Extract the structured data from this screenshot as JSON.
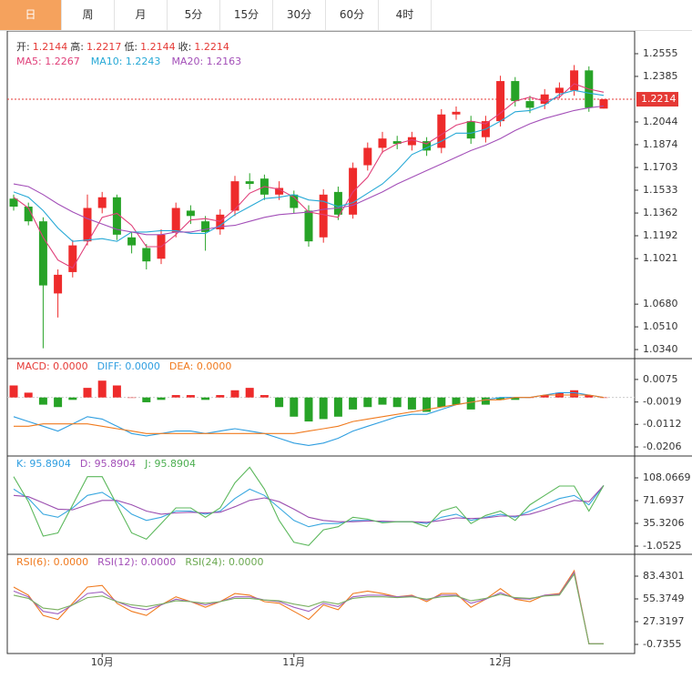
{
  "tabs": [
    "日",
    "周",
    "月",
    "5分",
    "15分",
    "30分",
    "60分",
    "4时"
  ],
  "active_tab": 0,
  "chart_data": [
    {
      "type": "candlestick",
      "info": [
        {
          "text": "开:",
          "color": "#333333"
        },
        {
          "text": "1.2144",
          "color": "#e53935"
        },
        {
          "text": "高:",
          "color": "#333333"
        },
        {
          "text": "1.2217",
          "color": "#e53935"
        },
        {
          "text": "低:",
          "color": "#333333"
        },
        {
          "text": "1.2144",
          "color": "#e53935"
        },
        {
          "text": "收:",
          "color": "#333333"
        },
        {
          "text": "1.2214",
          "color": "#e53935"
        }
      ],
      "legend": [
        {
          "text": "MA5: 1.2267",
          "color": "#e0407a"
        },
        {
          "text": "MA10: 1.2243",
          "color": "#27a9d6"
        },
        {
          "text": "MA20: 1.2163",
          "color": "#a34fb8"
        }
      ],
      "categories": [
        null,
        null,
        null,
        null,
        null,
        null,
        "10月",
        null,
        null,
        null,
        null,
        null,
        null,
        null,
        null,
        null,
        null,
        null,
        null,
        "11月",
        null,
        null,
        null,
        null,
        null,
        null,
        null,
        null,
        null,
        null,
        null,
        null,
        null,
        "12月",
        null,
        null,
        null,
        null,
        null,
        null,
        null
      ],
      "up_color": "#ee2b2b",
      "down_color": "#27a327",
      "ohlc": [
        [
          1.147,
          1.15,
          1.138,
          1.141
        ],
        [
          1.141,
          1.144,
          1.127,
          1.13
        ],
        [
          1.13,
          1.133,
          1.035,
          1.082
        ],
        [
          1.076,
          1.094,
          1.058,
          1.09
        ],
        [
          1.092,
          1.116,
          1.088,
          1.112
        ],
        [
          1.115,
          1.15,
          1.112,
          1.14
        ],
        [
          1.14,
          1.152,
          1.136,
          1.148
        ],
        [
          1.148,
          1.15,
          1.116,
          1.12
        ],
        [
          1.118,
          1.122,
          1.106,
          1.112
        ],
        [
          1.11,
          1.113,
          1.094,
          1.1
        ],
        [
          1.102,
          1.124,
          1.098,
          1.12
        ],
        [
          1.122,
          1.144,
          1.118,
          1.14
        ],
        [
          1.138,
          1.142,
          1.128,
          1.134
        ],
        [
          1.13,
          1.134,
          1.108,
          1.122
        ],
        [
          1.124,
          1.139,
          1.12,
          1.135
        ],
        [
          1.138,
          1.164,
          1.134,
          1.16
        ],
        [
          1.16,
          1.166,
          1.154,
          1.158
        ],
        [
          1.162,
          1.165,
          1.146,
          1.15
        ],
        [
          1.15,
          1.16,
          1.146,
          1.155
        ],
        [
          1.15,
          1.153,
          1.136,
          1.14
        ],
        [
          1.138,
          1.142,
          1.111,
          1.115
        ],
        [
          1.118,
          1.154,
          1.114,
          1.15
        ],
        [
          1.152,
          1.156,
          1.131,
          1.135
        ],
        [
          1.135,
          1.174,
          1.132,
          1.17
        ],
        [
          1.172,
          1.189,
          1.168,
          1.185
        ],
        [
          1.185,
          1.197,
          1.181,
          1.192
        ],
        [
          1.19,
          1.194,
          1.184,
          1.188
        ],
        [
          1.187,
          1.197,
          1.183,
          1.193
        ],
        [
          1.19,
          1.193,
          1.179,
          1.183
        ],
        [
          1.185,
          1.214,
          1.181,
          1.21
        ],
        [
          1.21,
          1.216,
          1.206,
          1.212
        ],
        [
          1.205,
          1.209,
          1.188,
          1.192
        ],
        [
          1.193,
          1.209,
          1.189,
          1.205
        ],
        [
          1.205,
          1.239,
          1.201,
          1.235
        ],
        [
          1.235,
          1.238,
          1.216,
          1.22
        ],
        [
          1.22,
          1.224,
          1.211,
          1.215
        ],
        [
          1.218,
          1.229,
          1.214,
          1.225
        ],
        [
          1.226,
          1.234,
          1.222,
          1.23
        ],
        [
          1.228,
          1.247,
          1.224,
          1.243
        ],
        [
          1.243,
          1.246,
          1.212,
          1.215
        ],
        [
          1.2144,
          1.2217,
          1.2144,
          1.2214
        ]
      ],
      "series": [
        {
          "color": "#e0407a",
          "values": [
            1.148,
            1.14,
            1.118,
            1.101,
            1.095,
            1.114,
            1.133,
            1.136,
            1.127,
            1.111,
            1.111,
            1.12,
            1.131,
            1.132,
            1.13,
            1.139,
            1.151,
            1.156,
            1.154,
            1.148,
            1.137,
            1.135,
            1.133,
            1.152,
            1.163,
            1.182,
            1.188,
            1.191,
            1.188,
            1.195,
            1.202,
            1.205,
            1.203,
            1.211,
            1.22,
            1.223,
            1.22,
            1.223,
            1.233,
            1.229,
            1.2267
          ]
        },
        {
          "color": "#27a9d6",
          "values": [
            1.152,
            1.148,
            1.138,
            1.125,
            1.115,
            1.116,
            1.117,
            1.115,
            1.122,
            1.122,
            1.123,
            1.123,
            1.121,
            1.121,
            1.127,
            1.135,
            1.141,
            1.147,
            1.148,
            1.15,
            1.146,
            1.145,
            1.141,
            1.144,
            1.151,
            1.158,
            1.168,
            1.18,
            1.185,
            1.19,
            1.196,
            1.196,
            1.199,
            1.205,
            1.212,
            1.213,
            1.217,
            1.225,
            1.228,
            1.226,
            1.2243
          ]
        },
        {
          "color": "#a34fb8",
          "values": [
            1.158,
            1.156,
            1.15,
            1.143,
            1.137,
            1.132,
            1.128,
            1.124,
            1.122,
            1.12,
            1.12,
            1.122,
            1.122,
            1.124,
            1.126,
            1.127,
            1.13,
            1.133,
            1.135,
            1.136,
            1.137,
            1.139,
            1.14,
            1.142,
            1.147,
            1.152,
            1.158,
            1.163,
            1.168,
            1.173,
            1.178,
            1.183,
            1.187,
            1.192,
            1.198,
            1.203,
            1.207,
            1.21,
            1.213,
            1.215,
            1.2163
          ]
        }
      ],
      "last_price": 1.2214,
      "last_price_color": "#e53935",
      "ylim": [
        1.0279,
        1.2698
      ],
      "yticks": [
        1.2555,
        1.2385,
        1.2044,
        1.1874,
        1.1703,
        1.1533,
        1.1362,
        1.1192,
        1.1021,
        {
          "value": 1.068,
          "label": "1.0680"
        },
        {
          "value": 1.051,
          "label": "1.0510"
        },
        {
          "value": 1.034,
          "label": "1.0340"
        }
      ]
    },
    {
      "type": "macd",
      "legend": [
        {
          "text": "MACD: 0.0000",
          "color": "#e53935"
        },
        {
          "text": "DIFF: 0.0000",
          "color": "#2f9ee0"
        },
        {
          "text": "DEA: 0.0000",
          "color": "#f07a1e"
        }
      ],
      "up_color": "#ee2b2b",
      "down_color": "#27a327",
      "histogram": [
        0.005,
        0.002,
        -0.003,
        -0.004,
        -0.001,
        0.004,
        0.007,
        0.005,
        0.0,
        -0.002,
        -0.001,
        0.001,
        0.001,
        -0.001,
        0.001,
        0.003,
        0.004,
        0.001,
        -0.004,
        -0.008,
        -0.01,
        -0.009,
        -0.008,
        -0.005,
        -0.004,
        -0.003,
        -0.004,
        -0.005,
        -0.006,
        -0.004,
        -0.003,
        -0.005,
        -0.003,
        -0.001,
        -0.001,
        0.0,
        0.001,
        0.002,
        0.003,
        0.001,
        0.0
      ],
      "series": [
        {
          "color": "#2f9ee0",
          "values": [
            -0.008,
            -0.01,
            -0.012,
            -0.014,
            -0.011,
            -0.008,
            -0.009,
            -0.012,
            -0.015,
            -0.016,
            -0.015,
            -0.014,
            -0.014,
            -0.015,
            -0.014,
            -0.013,
            -0.014,
            -0.015,
            -0.017,
            -0.019,
            -0.02,
            -0.019,
            -0.017,
            -0.014,
            -0.012,
            -0.01,
            -0.008,
            -0.007,
            -0.007,
            -0.005,
            -0.003,
            -0.002,
            -0.001,
            0.0,
            0.0,
            0.0,
            0.001,
            0.002,
            0.002,
            0.001,
            0.0
          ]
        },
        {
          "color": "#f07a1e",
          "values": [
            -0.012,
            -0.012,
            -0.011,
            -0.011,
            -0.011,
            -0.011,
            -0.012,
            -0.013,
            -0.014,
            -0.015,
            -0.015,
            -0.015,
            -0.015,
            -0.015,
            -0.015,
            -0.015,
            -0.015,
            -0.015,
            -0.015,
            -0.015,
            -0.014,
            -0.013,
            -0.012,
            -0.01,
            -0.009,
            -0.008,
            -0.007,
            -0.006,
            -0.005,
            -0.004,
            -0.003,
            -0.002,
            -0.001,
            -0.001,
            0.0,
            0.0,
            0.001,
            0.001,
            0.001,
            0.001,
            0.0
          ]
        }
      ],
      "ylim": [
        -0.024,
        0.0158
      ],
      "yticks": [
        0.0075,
        -0.0019,
        -0.0112,
        -0.0206
      ]
    },
    {
      "type": "line",
      "legend": [
        {
          "text": "K: 95.8904",
          "color": "#2f9ee0"
        },
        {
          "text": "D: 95.8904",
          "color": "#a34fb8"
        },
        {
          "text": "J: 95.8904",
          "color": "#4caf50"
        }
      ],
      "series": [
        {
          "color": "#3aa8e0",
          "values": [
            90,
            75,
            50,
            45,
            60,
            80,
            85,
            70,
            50,
            40,
            45,
            55,
            55,
            50,
            55,
            75,
            90,
            80,
            60,
            40,
            30,
            35,
            35,
            40,
            40,
            38,
            38,
            38,
            35,
            45,
            50,
            40,
            45,
            50,
            45,
            55,
            65,
            75,
            80,
            65,
            95.8904
          ]
        },
        {
          "color": "#9b4fb0",
          "values": [
            80,
            78,
            68,
            58,
            57,
            65,
            72,
            72,
            65,
            55,
            50,
            52,
            53,
            52,
            53,
            62,
            72,
            76,
            70,
            58,
            45,
            40,
            38,
            38,
            39,
            39,
            38,
            38,
            37,
            40,
            44,
            43,
            44,
            47,
            47,
            50,
            57,
            65,
            72,
            70,
            95.8904
          ]
        },
        {
          "color": "#5cb85c",
          "values": [
            110,
            70,
            15,
            20,
            65,
            110,
            110,
            65,
            20,
            10,
            35,
            60,
            60,
            45,
            60,
            100,
            125,
            90,
            40,
            5,
            0,
            25,
            30,
            45,
            42,
            36,
            38,
            38,
            30,
            55,
            62,
            35,
            48,
            55,
            40,
            65,
            80,
            95,
            95,
            55,
            95.8904
          ]
        }
      ],
      "ylim": [
        -12.69,
        141.53
      ],
      "yticks": [
        108.0669,
        71.6937,
        35.3206,
        -1.0525
      ]
    },
    {
      "type": "line",
      "legend": [
        {
          "text": "RSI(6): 0.0000",
          "color": "#f07a1e"
        },
        {
          "text": "RSI(12): 0.0000",
          "color": "#a34fb8"
        },
        {
          "text": "RSI(24): 0.0000",
          "color": "#6aa84f"
        }
      ],
      "series": [
        {
          "color": "#f07a1e",
          "values": [
            70,
            60,
            35,
            30,
            50,
            70,
            72,
            50,
            40,
            35,
            48,
            58,
            52,
            45,
            52,
            62,
            60,
            52,
            50,
            40,
            30,
            48,
            42,
            62,
            65,
            62,
            58,
            60,
            52,
            62,
            62,
            45,
            55,
            68,
            55,
            52,
            60,
            62,
            90,
            0,
            0
          ]
        },
        {
          "color": "#a060c0",
          "values": [
            65,
            58,
            40,
            37,
            48,
            62,
            64,
            52,
            45,
            42,
            48,
            55,
            52,
            48,
            52,
            58,
            58,
            54,
            52,
            45,
            40,
            50,
            46,
            58,
            60,
            60,
            58,
            59,
            54,
            60,
            60,
            50,
            55,
            63,
            56,
            55,
            60,
            61,
            88,
            0,
            0
          ]
        },
        {
          "color": "#7ab060",
          "values": [
            60,
            56,
            44,
            42,
            48,
            57,
            59,
            52,
            48,
            46,
            49,
            53,
            52,
            50,
            52,
            56,
            56,
            54,
            53,
            49,
            46,
            52,
            49,
            56,
            58,
            58,
            57,
            58,
            55,
            58,
            59,
            53,
            56,
            61,
            57,
            56,
            59,
            60,
            86,
            0,
            0
          ]
        }
      ],
      "ylim": [
        -11.96,
        109.24
      ],
      "yticks": [
        83.4301,
        55.3749,
        27.3197,
        -0.7355
      ]
    }
  ]
}
